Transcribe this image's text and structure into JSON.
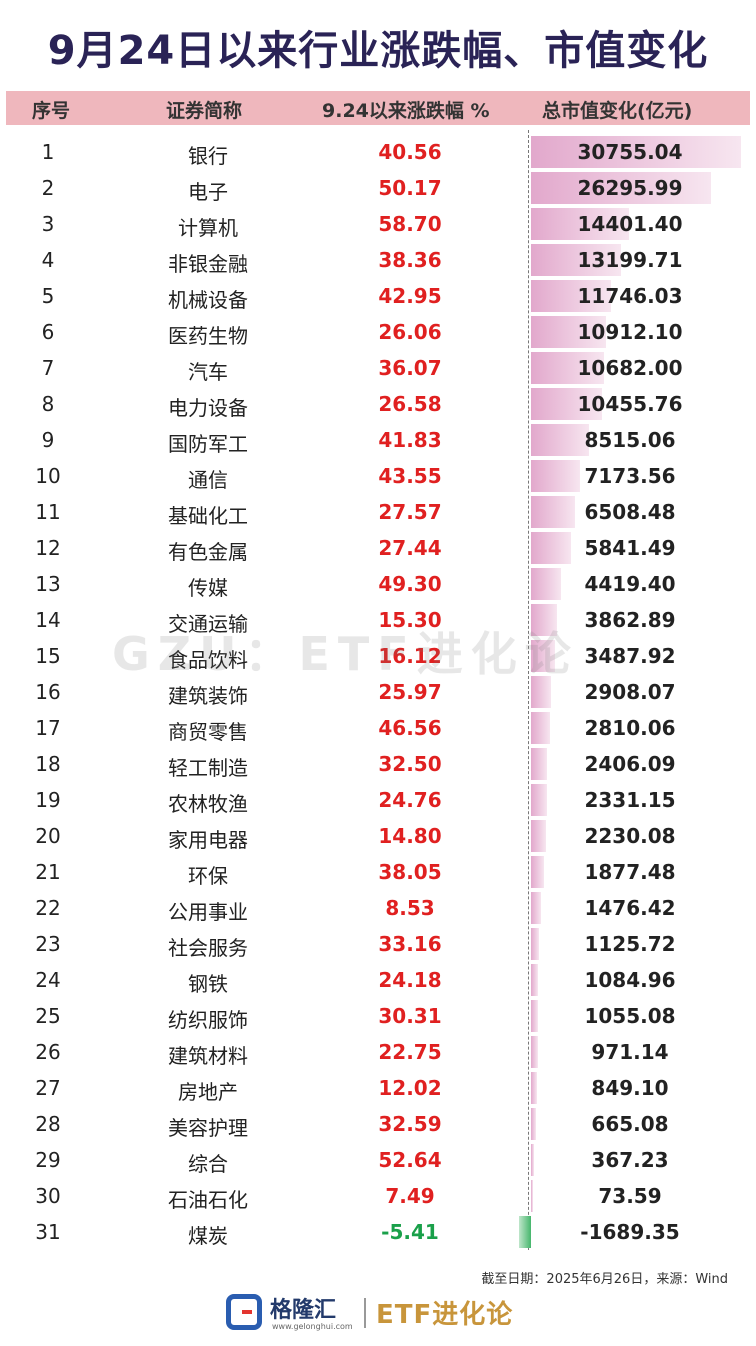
{
  "title": "9月24日以来行业涨跌幅、市值变化",
  "colors": {
    "title": "#2a2356",
    "header_bg": "#efb7bd",
    "positive": "#e02020",
    "negative": "#1aa04a",
    "bar_positive": "#e2a8cc",
    "bar_negative": "#46b66c",
    "brand": "#c8953b"
  },
  "header": {
    "no": "序号",
    "name": "证券简称",
    "change": "9.24以来涨跌幅 %",
    "cap": "总市值变化(亿元)"
  },
  "chart_data": {
    "type": "table",
    "columns": [
      "序号",
      "证券简称",
      "9.24以来涨跌幅 %",
      "总市值变化(亿元)"
    ],
    "rows": [
      {
        "no": "1",
        "name": "银行",
        "change": "40.56",
        "cap": "30755.04"
      },
      {
        "no": "2",
        "name": "电子",
        "change": "50.17",
        "cap": "26295.99"
      },
      {
        "no": "3",
        "name": "计算机",
        "change": "58.70",
        "cap": "14401.40"
      },
      {
        "no": "4",
        "name": "非银金融",
        "change": "38.36",
        "cap": "13199.71"
      },
      {
        "no": "5",
        "name": "机械设备",
        "change": "42.95",
        "cap": "11746.03"
      },
      {
        "no": "6",
        "name": "医药生物",
        "change": "26.06",
        "cap": "10912.10"
      },
      {
        "no": "7",
        "name": "汽车",
        "change": "36.07",
        "cap": "10682.00"
      },
      {
        "no": "8",
        "name": "电力设备",
        "change": "26.58",
        "cap": "10455.76"
      },
      {
        "no": "9",
        "name": "国防军工",
        "change": "41.83",
        "cap": "8515.06"
      },
      {
        "no": "10",
        "name": "通信",
        "change": "43.55",
        "cap": "7173.56"
      },
      {
        "no": "11",
        "name": "基础化工",
        "change": "27.57",
        "cap": "6508.48"
      },
      {
        "no": "12",
        "name": "有色金属",
        "change": "27.44",
        "cap": "5841.49"
      },
      {
        "no": "13",
        "name": "传媒",
        "change": "49.30",
        "cap": "4419.40"
      },
      {
        "no": "14",
        "name": "交通运输",
        "change": "15.30",
        "cap": "3862.89"
      },
      {
        "no": "15",
        "name": "食品饮料",
        "change": "16.12",
        "cap": "3487.92"
      },
      {
        "no": "16",
        "name": "建筑装饰",
        "change": "25.97",
        "cap": "2908.07"
      },
      {
        "no": "17",
        "name": "商贸零售",
        "change": "46.56",
        "cap": "2810.06"
      },
      {
        "no": "18",
        "name": "轻工制造",
        "change": "32.50",
        "cap": "2406.09"
      },
      {
        "no": "19",
        "name": "农林牧渔",
        "change": "24.76",
        "cap": "2331.15"
      },
      {
        "no": "20",
        "name": "家用电器",
        "change": "14.80",
        "cap": "2230.08"
      },
      {
        "no": "21",
        "name": "环保",
        "change": "38.05",
        "cap": "1877.48"
      },
      {
        "no": "22",
        "name": "公用事业",
        "change": "8.53",
        "cap": "1476.42"
      },
      {
        "no": "23",
        "name": "社会服务",
        "change": "33.16",
        "cap": "1125.72"
      },
      {
        "no": "24",
        "name": "钢铁",
        "change": "24.18",
        "cap": "1084.96"
      },
      {
        "no": "25",
        "name": "纺织服饰",
        "change": "30.31",
        "cap": "1055.08"
      },
      {
        "no": "26",
        "name": "建筑材料",
        "change": "22.75",
        "cap": "971.14"
      },
      {
        "no": "27",
        "name": "房地产",
        "change": "12.02",
        "cap": "849.10"
      },
      {
        "no": "28",
        "name": "美容护理",
        "change": "32.59",
        "cap": "665.08"
      },
      {
        "no": "29",
        "name": "综合",
        "change": "52.64",
        "cap": "367.23"
      },
      {
        "no": "30",
        "name": "石油石化",
        "change": "7.49",
        "cap": "73.59"
      },
      {
        "no": "31",
        "name": "煤炭",
        "change": "-5.41",
        "cap": "-1689.35"
      }
    ]
  },
  "watermark": "GZU：ETF进化论",
  "note": "截至日期：2025年6月26日，来源：Wind",
  "footer": {
    "logo_name": "格隆汇",
    "logo_url": "www.gelonghui.com",
    "brand": "ETF进化论"
  }
}
